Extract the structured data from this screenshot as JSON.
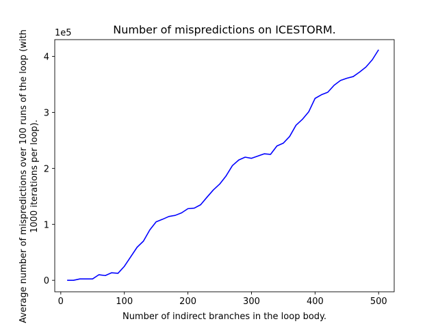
{
  "chart_data": {
    "type": "line",
    "title": "Number of mispredictions on ICESTORM.",
    "xlabel": "Number of indirect branches in the loop body.",
    "ylabel_line1": "Average number of mispredictions over 100 runs of the loop (with",
    "ylabel_line2": "1000 iterations per loop).",
    "offset_text": "1e5",
    "x_ticks": [
      "0",
      "100",
      "200",
      "300",
      "400",
      "500"
    ],
    "y_ticks": [
      "0",
      "1",
      "2",
      "3",
      "4"
    ],
    "xlim": [
      -9.5,
      524.5
    ],
    "ylim": [
      -20500,
      430000
    ],
    "y_scale": 100000,
    "grid": false,
    "series": [
      {
        "color": "#0000ff",
        "x": [
          10,
          20,
          30,
          40,
          50,
          60,
          70,
          80,
          90,
          100,
          110,
          120,
          130,
          140,
          150,
          160,
          170,
          180,
          190,
          200,
          210,
          220,
          230,
          240,
          250,
          260,
          270,
          280,
          290,
          300,
          310,
          320,
          330,
          340,
          350,
          360,
          370,
          380,
          390,
          400,
          410,
          420,
          430,
          440,
          450,
          460,
          470,
          480,
          490,
          500
        ],
        "values": [
          0,
          0,
          2500,
          2500,
          2500,
          10000,
          8500,
          13500,
          12500,
          25000,
          42000,
          59000,
          70000,
          90000,
          104500,
          109000,
          114000,
          116000,
          120500,
          128000,
          129000,
          135000,
          148500,
          161500,
          172000,
          186500,
          205000,
          215000,
          220000,
          218000,
          222000,
          226000,
          225000,
          240000,
          245000,
          257000,
          277000,
          287500,
          301000,
          325000,
          331500,
          336000,
          348500,
          357000,
          361000,
          364000,
          372000,
          381000,
          394000,
          412000
        ]
      }
    ]
  }
}
